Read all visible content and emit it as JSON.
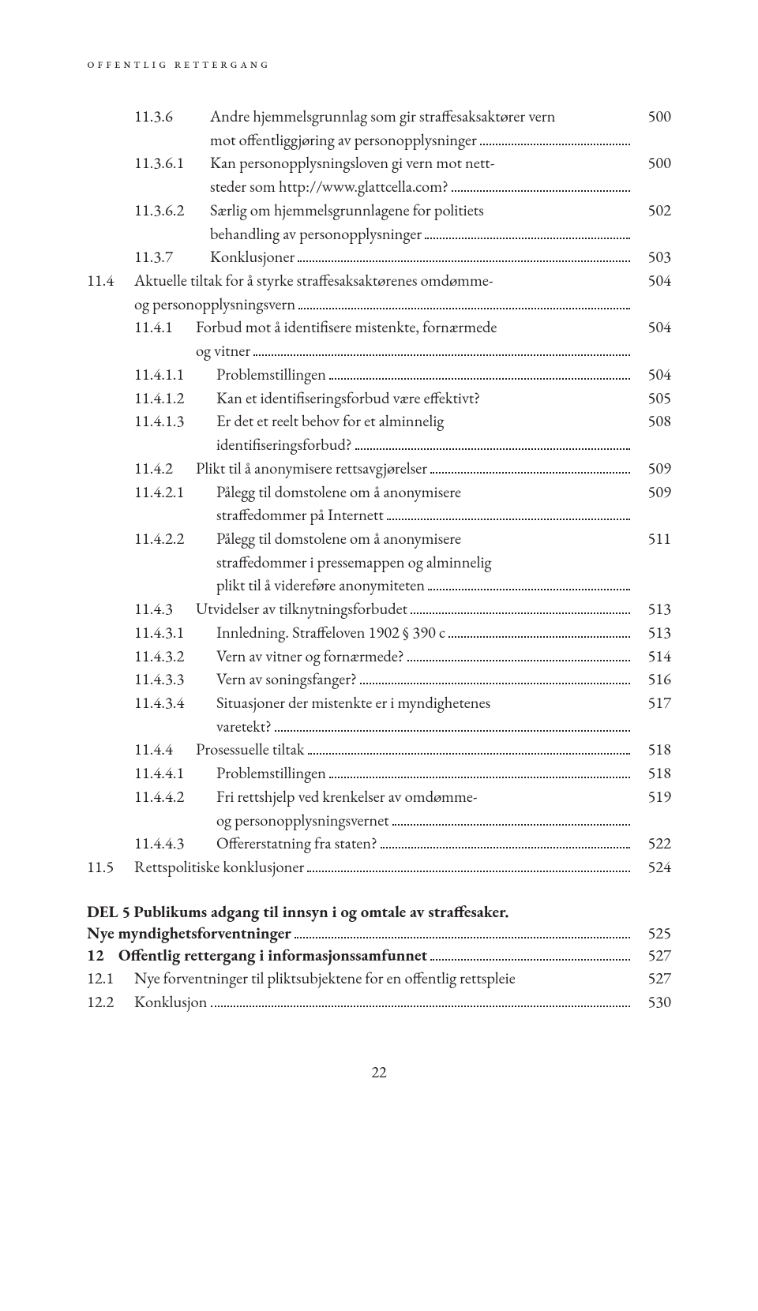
{
  "header": "offentlig rettergang",
  "footer": "22",
  "part5": {
    "line1_bold": "DEL 5",
    "line1_rest": "Publikums adgang til innsyn i og omtale av straffesaker.",
    "line2_bold": "Nye myndighetsforventninger",
    "line2_page": "525"
  },
  "toc": [
    {
      "indent": 1,
      "num": "11.3.6",
      "lines": [
        "Andre hjemmelsgrunnlag som gir straffesaksaktører vern",
        "mot offentliggjøring av personopplysninger"
      ],
      "page": "500"
    },
    {
      "indent": 1,
      "num": "11.3.6.1",
      "lines": [
        "Kan personopplysningsloven gi vern mot nett-",
        "steder som http://www.glattcella.com?"
      ],
      "page": "500"
    },
    {
      "indent": 1,
      "num": "11.3.6.2",
      "lines": [
        "Særlig om hjemmelsgrunnlagene for politiets",
        "behandling av personopplysninger"
      ],
      "page": "502"
    },
    {
      "indent": 1,
      "num": "11.3.7",
      "lines": [
        "Konklusjoner"
      ],
      "page": "503"
    },
    {
      "indent": 2,
      "num": "11.4",
      "lines": [
        "Aktuelle tiltak for å styrke straffesaksaktørenes omdømme-",
        "og personopplysningsvern"
      ],
      "page": "504"
    },
    {
      "indent": 3,
      "num": "11.4.1",
      "lines": [
        "Forbud mot å identifisere mistenkte, fornærmede",
        "og vitner"
      ],
      "page": "504"
    },
    {
      "indent": 4,
      "num": "11.4.1.1",
      "lines": [
        "Problemstillingen"
      ],
      "page": "504"
    },
    {
      "indent": 4,
      "num": "11.4.1.2",
      "lines": [
        "Kan et identifiseringsforbud være effektivt?"
      ],
      "page": "505",
      "noLeaders": true
    },
    {
      "indent": 4,
      "num": "11.4.1.3",
      "lines": [
        "Er det et reelt behov for et alminnelig",
        "identifiseringsforbud?"
      ],
      "page": "508"
    },
    {
      "indent": 3,
      "num": "11.4.2",
      "lines": [
        "Plikt til å anonymisere rettsavgjørelser"
      ],
      "page": "509"
    },
    {
      "indent": 4,
      "num": "11.4.2.1",
      "lines": [
        "Pålegg til domstolene om å anonymisere",
        "straffedommer på Internett"
      ],
      "page": "509"
    },
    {
      "indent": 4,
      "num": "11.4.2.2",
      "lines": [
        "Pålegg til domstolene om å anonymisere",
        "straffedommer i pressemappen og alminnelig",
        "plikt til å videreføre anonymiteten"
      ],
      "page": "511"
    },
    {
      "indent": 3,
      "num": "11.4.3",
      "lines": [
        "Utvidelser av tilknytningsforbudet"
      ],
      "page": "513"
    },
    {
      "indent": 4,
      "num": "11.4.3.1",
      "lines": [
        "Innledning. Straffeloven 1902 § 390 c"
      ],
      "page": "513"
    },
    {
      "indent": 4,
      "num": "11.4.3.2",
      "lines": [
        "Vern av vitner og fornærmede?"
      ],
      "page": "514"
    },
    {
      "indent": 4,
      "num": "11.4.3.3",
      "lines": [
        "Vern av soningsfanger?"
      ],
      "page": "516"
    },
    {
      "indent": 4,
      "num": "11.4.3.4",
      "lines": [
        "Situasjoner der mistenkte er i myndighetenes",
        "varetekt?"
      ],
      "page": "517"
    },
    {
      "indent": 3,
      "num": "11.4.4",
      "lines": [
        "Prosessuelle tiltak"
      ],
      "page": "518"
    },
    {
      "indent": 4,
      "num": "11.4.4.1",
      "lines": [
        "Problemstillingen"
      ],
      "page": "518"
    },
    {
      "indent": 4,
      "num": "11.4.4.2",
      "lines": [
        "Fri rettshjelp ved krenkelser av omdømme-",
        "og personopplysningsvernet"
      ],
      "page": "519"
    },
    {
      "indent": 4,
      "num": "11.4.4.3",
      "lines": [
        "Offererstatning fra staten?"
      ],
      "page": "522"
    },
    {
      "indent": 2,
      "num": "11.5",
      "lines": [
        "Rettspolitiske konklusjoner"
      ],
      "page": "524"
    }
  ],
  "toc2": [
    {
      "indent": 0,
      "num": "12",
      "lines": [
        "Offentlig rettergang i informasjonssamfunnet"
      ],
      "page": "527",
      "bold": true
    },
    {
      "indent": 2,
      "num": "12.1",
      "lines": [
        "Nye forventninger til pliktsubjektene for en offentlig rettspleie"
      ],
      "page": "527",
      "noLeaders": true
    },
    {
      "indent": 2,
      "num": "12.2",
      "lines": [
        "Konklusjon"
      ],
      "page": "530"
    }
  ],
  "numWidths": {
    "0": "40px",
    "1": "96px",
    "2": "60px",
    "3": "78px",
    "4": "104px"
  }
}
